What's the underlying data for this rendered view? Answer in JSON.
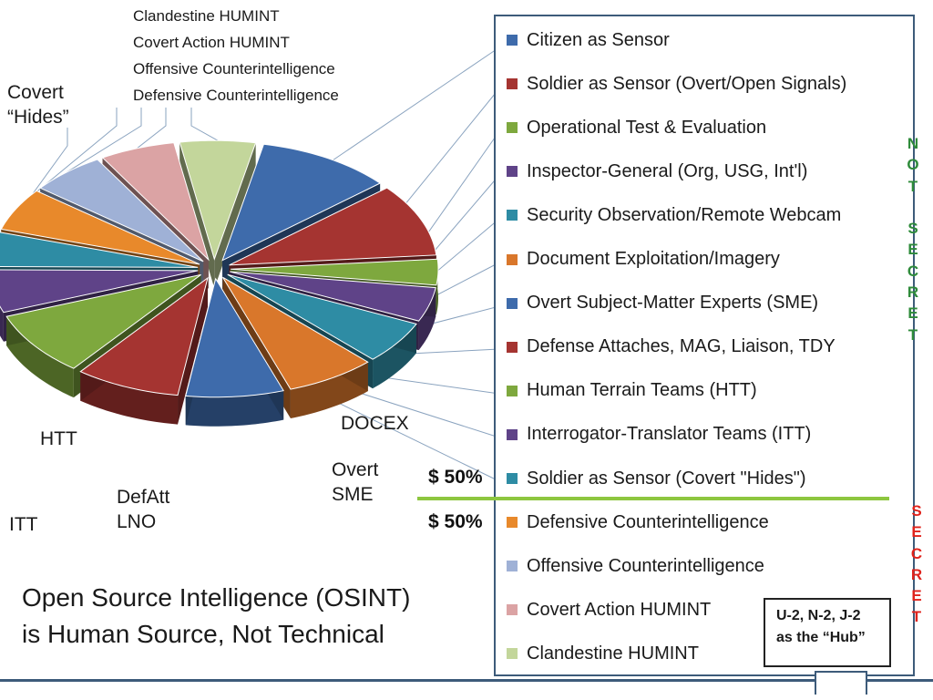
{
  "chart_data": {
    "type": "pie",
    "title": "",
    "slices": [
      {
        "label": "Citizen as Sensor",
        "value": 9,
        "color": "#3e6bab"
      },
      {
        "label": "Soldier as Sensor (Overt/Open Signals)",
        "value": 8.5,
        "color": "#a53431"
      },
      {
        "label": "Operational Test & Evaluation",
        "value": 3,
        "color": "#7ea83e"
      },
      {
        "label": "Inspector-General (Org, USG, Int'l)",
        "value": 4,
        "color": "#5f4388"
      },
      {
        "label": "Security Observation/Remote Webcam",
        "value": 5,
        "color": "#2e8ca4"
      },
      {
        "label": "Document Exploitation/Imagery",
        "value": 6,
        "color": "#d9772b"
      },
      {
        "label": "Overt Subject-Matter Experts (SME)",
        "value": 6.5,
        "color": "#3e6bab"
      },
      {
        "label": "Defense Attaches, MAG, Liaison, TDY",
        "value": 7,
        "color": "#a53431"
      },
      {
        "label": "Human Terrain Teams (HTT)",
        "value": 7.5,
        "color": "#7ea83e"
      },
      {
        "label": "Interrogator-Translator Teams (ITT)",
        "value": 5,
        "color": "#5f4388"
      },
      {
        "label": "Soldier as Sensor (Covert \"Hides\")",
        "value": 4,
        "color": "#2e8ca4"
      },
      {
        "label": "Defensive Counterintelligence",
        "value": 5,
        "color": "#e8892b"
      },
      {
        "label": "Offensive Counterintelligence",
        "value": 5,
        "color": "#9fb1d6"
      },
      {
        "label": "Covert Action HUMINT",
        "value": 5,
        "color": "#dba3a4"
      },
      {
        "label": "Clandestine HUMINT",
        "value": 5,
        "color": "#c3d69b"
      }
    ]
  },
  "top_labels": [
    "Clandestine HUMINT",
    "Covert Action HUMINT",
    "Offensive Counterintelligence",
    "Defensive Counterintelligence"
  ],
  "side_labels": {
    "covert_hides": "Covert\n“Hides”",
    "itt": "ITT",
    "htt": "HTT",
    "defatt": "DefAtt\nLNO",
    "overt_sme": "Overt\nSME",
    "docex": "DOCEX"
  },
  "legend": [
    {
      "label": "Citizen as Sensor",
      "color": "#3e6bab"
    },
    {
      "label": "Soldier as Sensor (Overt/Open Signals)",
      "color": "#a53431"
    },
    {
      "label": "Operational Test & Evaluation",
      "color": "#7ea83e"
    },
    {
      "label": "Inspector-General (Org, USG, Int'l)",
      "color": "#5f4388"
    },
    {
      "label": "Security Observation/Remote Webcam",
      "color": "#2e8ca4"
    },
    {
      "label": "Document Exploitation/Imagery",
      "color": "#d9772b"
    },
    {
      "label": "Overt Subject-Matter Experts (SME)",
      "color": "#3e6bab"
    },
    {
      "label": "Defense Attaches, MAG, Liaison, TDY",
      "color": "#a53431"
    },
    {
      "label": "Human Terrain Teams (HTT)",
      "color": "#7ea83e"
    },
    {
      "label": "Interrogator-Translator Teams (ITT)",
      "color": "#5f4388"
    },
    {
      "label": "Soldier as Sensor (Covert \"Hides\")",
      "color": "#2e8ca4"
    },
    {
      "label": "Defensive Counterintelligence",
      "color": "#e8892b"
    },
    {
      "label": "Offensive Counterintelligence",
      "color": "#9fb1d6"
    },
    {
      "label": "Covert Action HUMINT",
      "color": "#dba3a4"
    },
    {
      "label": "Clandestine HUMINT",
      "color": "#c3d69b"
    }
  ],
  "not_secret": {
    "text": "NOT SECRET",
    "color": "#2e8b3a"
  },
  "secret": {
    "text": "SECRET",
    "color": "#e0231c"
  },
  "percent_top": "$ 50%",
  "percent_bottom": "$ 50%",
  "hub_text": {
    "line1": "U-2, N-2,  J-2",
    "line2": "as the “Hub”"
  },
  "title": {
    "line1": "Open Source Intelligence (OSINT)",
    "line2": "is Human Source, Not Technical"
  },
  "divider_color": "#8dc63f",
  "frame_color": "#3d5b7a"
}
